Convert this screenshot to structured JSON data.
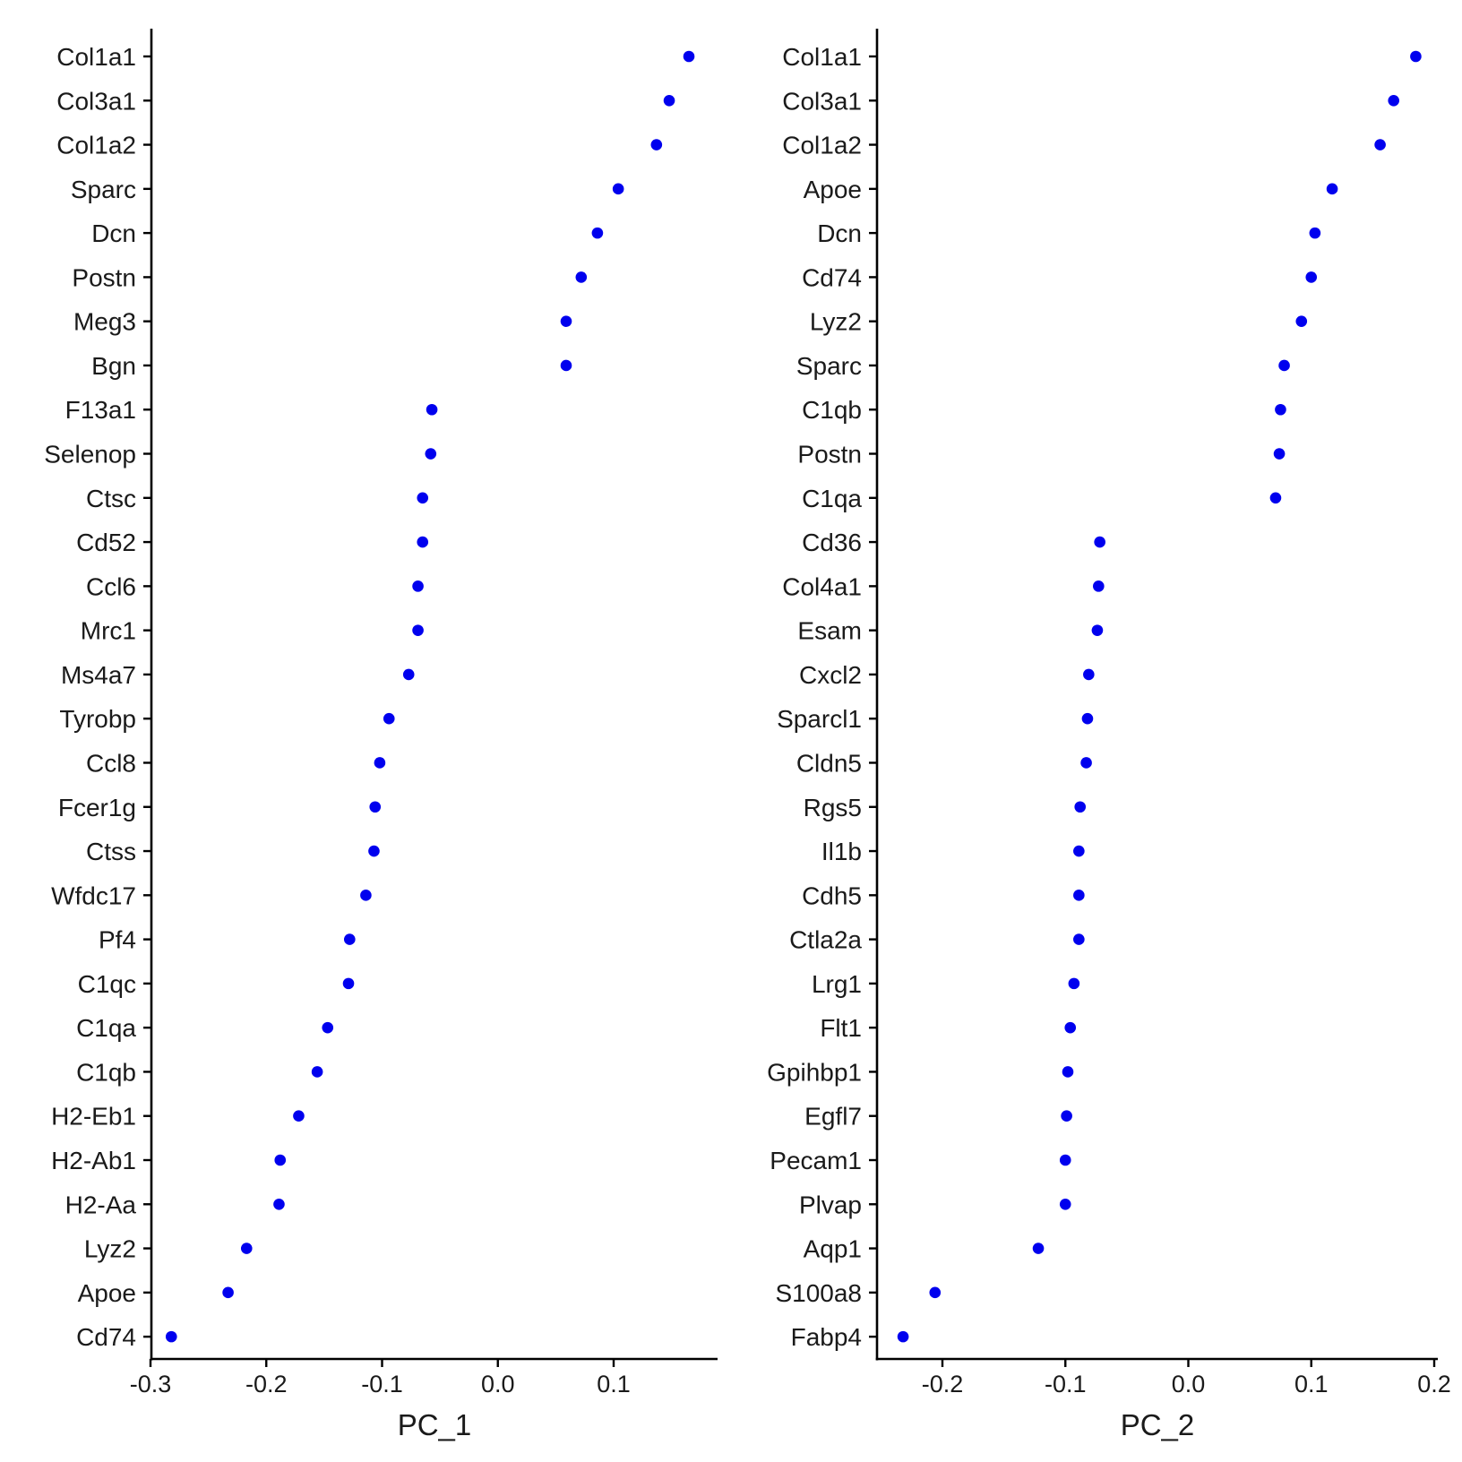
{
  "colors": {
    "point": "#0000ee",
    "axis": "#000000",
    "text": "#1a1a1a",
    "background": "#ffffff"
  },
  "chart_data": [
    {
      "type": "scatter",
      "title": "",
      "xlabel": "PC_1",
      "ylabel": "",
      "xlim": [
        -0.3,
        0.18
      ],
      "xticks": [
        -0.3,
        -0.2,
        -0.1,
        0.0,
        0.1
      ],
      "xtick_labels": [
        "-0.3",
        "-0.2",
        "-0.1",
        "0.0",
        "0.1"
      ],
      "grid": false,
      "legend": "none",
      "genes": [
        "Col1a1",
        "Col3a1",
        "Col1a2",
        "Sparc",
        "Dcn",
        "Postn",
        "Meg3",
        "Bgn",
        "F13a1",
        "Selenop",
        "Ctsc",
        "Cd52",
        "Ccl6",
        "Mrc1",
        "Ms4a7",
        "Tyrobp",
        "Ccl8",
        "Fcer1g",
        "Ctss",
        "Wfdc17",
        "Pf4",
        "C1qc",
        "C1qa",
        "C1qb",
        "H2-Eb1",
        "H2-Ab1",
        "H2-Aa",
        "Lyz2",
        "Apoe",
        "Cd74"
      ],
      "values": [
        0.165,
        0.148,
        0.137,
        0.104,
        0.086,
        0.072,
        0.059,
        0.059,
        -0.057,
        -0.058,
        -0.065,
        -0.065,
        -0.069,
        -0.069,
        -0.077,
        -0.094,
        -0.102,
        -0.106,
        -0.107,
        -0.114,
        -0.128,
        -0.129,
        -0.147,
        -0.156,
        -0.172,
        -0.188,
        -0.189,
        -0.217,
        -0.233,
        -0.282
      ]
    },
    {
      "type": "scatter",
      "title": "",
      "xlabel": "PC_2",
      "ylabel": "",
      "xlim": [
        -0.25,
        0.2
      ],
      "xticks": [
        -0.2,
        -0.1,
        0.0,
        0.1,
        0.2
      ],
      "xtick_labels": [
        "-0.2",
        "-0.1",
        "0.0",
        "0.1",
        "0.2"
      ],
      "grid": false,
      "legend": "none",
      "genes": [
        "Col1a1",
        "Col3a1",
        "Col1a2",
        "Apoe",
        "Dcn",
        "Cd74",
        "Lyz2",
        "Sparc",
        "C1qb",
        "Postn",
        "C1qa",
        "Cd36",
        "Col4a1",
        "Esam",
        "Cxcl2",
        "Sparcl1",
        "Cldn5",
        "Rgs5",
        "Il1b",
        "Cdh5",
        "Ctla2a",
        "Lrg1",
        "Flt1",
        "Gpihbp1",
        "Egfl7",
        "Pecam1",
        "Plvap",
        "Aqp1",
        "S100a8",
        "Fabp4"
      ],
      "values": [
        0.185,
        0.167,
        0.156,
        0.117,
        0.103,
        0.1,
        0.092,
        0.078,
        0.075,
        0.074,
        0.071,
        -0.072,
        -0.073,
        -0.074,
        -0.081,
        -0.082,
        -0.083,
        -0.088,
        -0.089,
        -0.089,
        -0.089,
        -0.093,
        -0.096,
        -0.098,
        -0.099,
        -0.1,
        -0.1,
        -0.122,
        -0.206,
        -0.232
      ]
    }
  ]
}
